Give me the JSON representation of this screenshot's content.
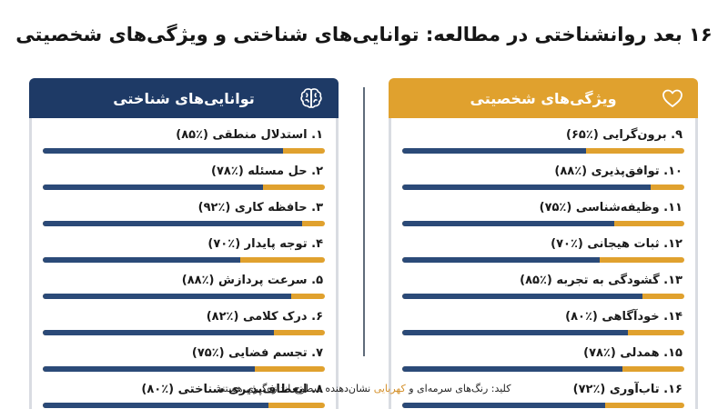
{
  "title": "۱۶ بعد روانشناختی در مطالعه: توانایی‌های شناختی و ویژگی‌های شخصیتی",
  "colors": {
    "navy": "#1e3a66",
    "amber": "#e0a12e",
    "navy_bar": "#2b4a78"
  },
  "icons": {
    "cognitive": "brain-icon",
    "personality": "heart-icon"
  },
  "footer": {
    "prefix": "کلید: رنگ‌های سرمه‌ای و ",
    "amber_word": "کهربایی",
    "suffix": " نشان‌دهنده سطوح اندازه‌گیری هستند"
  },
  "chart_data": [
    {
      "type": "bar",
      "title": "توانایی‌های شناختی",
      "ylim": [
        0,
        100
      ],
      "items": [
        {
          "num": "۱.",
          "label": "استدلال منطقی",
          "pct_text": "(۸۵٪)",
          "value": 85
        },
        {
          "num": "۲.",
          "label": "حل مسئله",
          "pct_text": "(۷۸٪)",
          "value": 78
        },
        {
          "num": "۳.",
          "label": "حافظه کاری",
          "pct_text": "(۹۲٪)",
          "value": 92
        },
        {
          "num": "۴.",
          "label": "توجه پایدار",
          "pct_text": "(۷۰٪)",
          "value": 70
        },
        {
          "num": "۵.",
          "label": "سرعت پردازش",
          "pct_text": "(۸۸٪)",
          "value": 88
        },
        {
          "num": "۶.",
          "label": "درک کلامی",
          "pct_text": "(۸۲٪)",
          "value": 82
        },
        {
          "num": "۷.",
          "label": "تجسم فضایی",
          "pct_text": "(۷۵٪)",
          "value": 75
        },
        {
          "num": "۸.",
          "label": "انعطاف‌پذیری شناختی",
          "pct_text": "(۸۰٪)",
          "value": 80
        }
      ]
    },
    {
      "type": "bar",
      "title": "ویژگی‌های شخصیتی",
      "ylim": [
        0,
        100
      ],
      "items": [
        {
          "num": "۹.",
          "label": "برون‌گرایی",
          "pct_text": "(۶۵٪)",
          "value": 65
        },
        {
          "num": "۱۰.",
          "label": "توافق‌پذیری",
          "pct_text": "(۸۸٪)",
          "value": 88
        },
        {
          "num": "۱۱.",
          "label": "وظیفه‌شناسی",
          "pct_text": "(۷۵٪)",
          "value": 75
        },
        {
          "num": "۱۲.",
          "label": "ثبات هیجانی",
          "pct_text": "(۷۰٪)",
          "value": 70
        },
        {
          "num": "۱۳.",
          "label": "گشودگی به تجربه",
          "pct_text": "(۸۵٪)",
          "value": 85
        },
        {
          "num": "۱۴.",
          "label": "خودآگاهی",
          "pct_text": "(۸۰٪)",
          "value": 80
        },
        {
          "num": "۱۵.",
          "label": "همدلی",
          "pct_text": "(۷۸٪)",
          "value": 78
        },
        {
          "num": "۱۶.",
          "label": "تاب‌آوری",
          "pct_text": "(۷۲٪)",
          "value": 72
        }
      ]
    }
  ]
}
